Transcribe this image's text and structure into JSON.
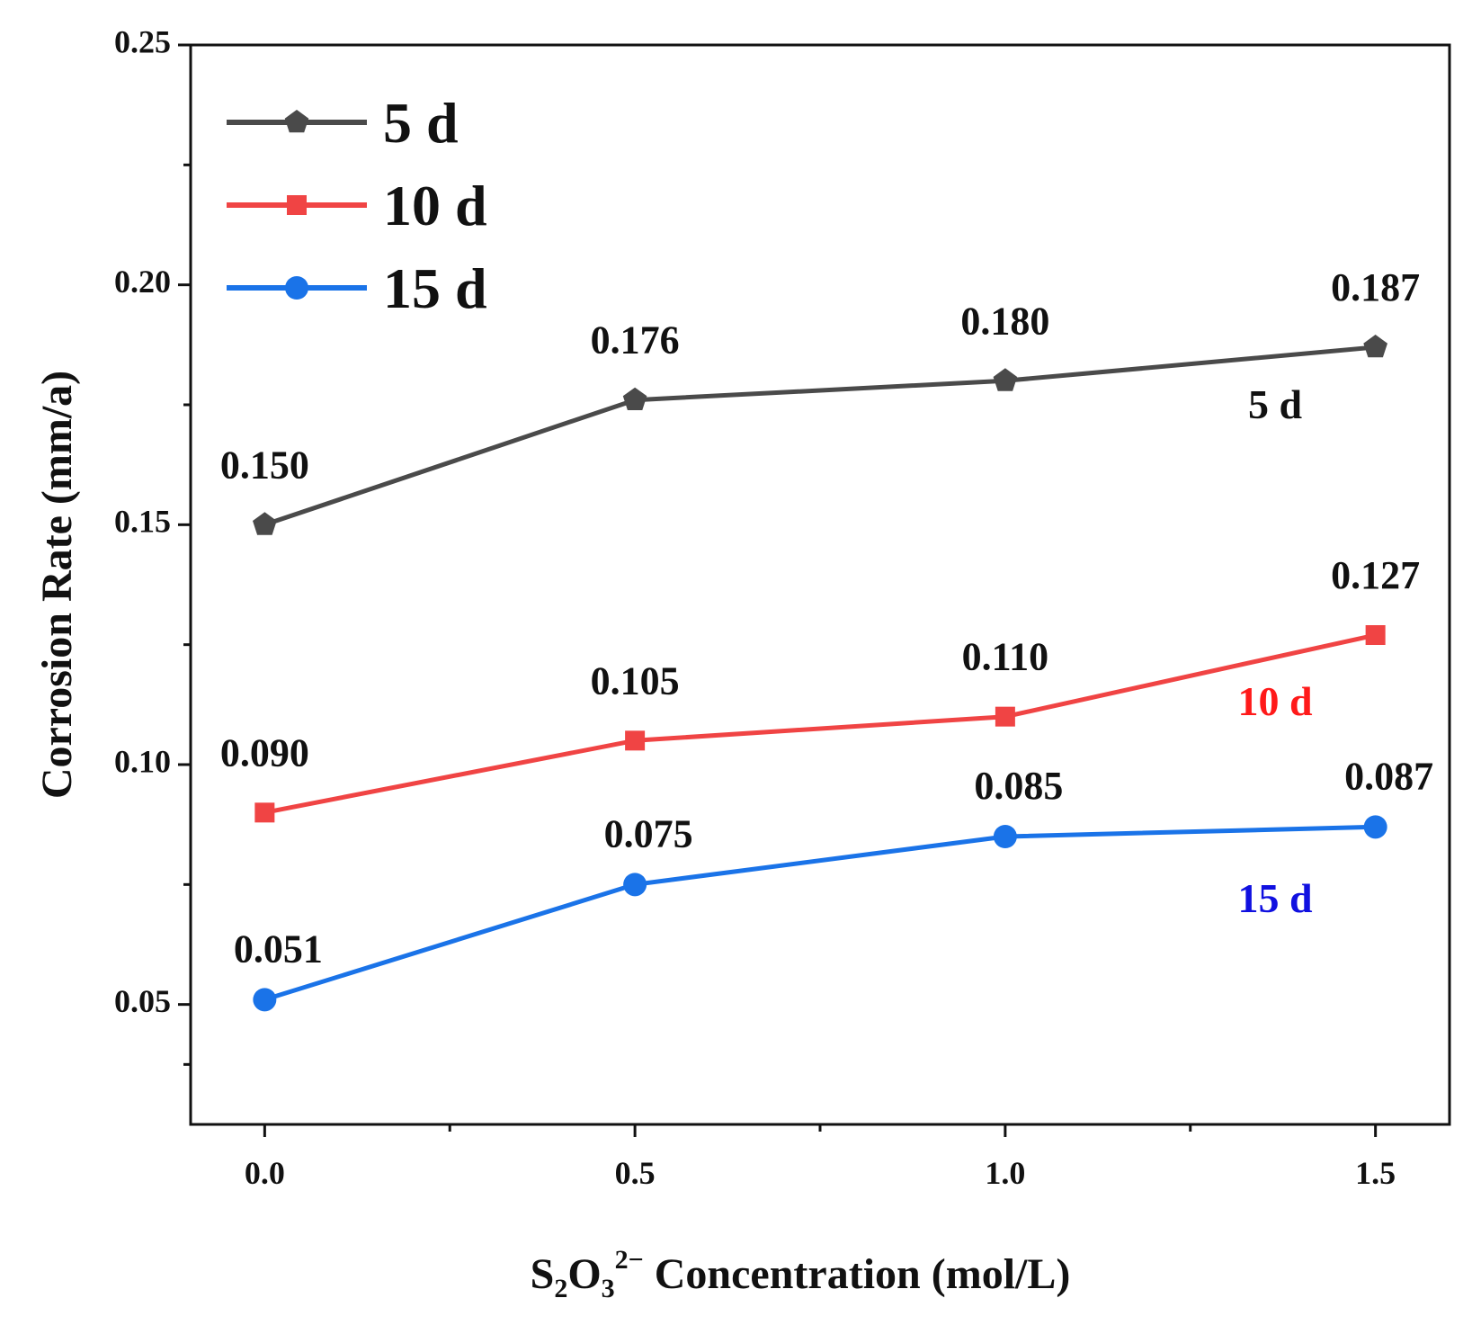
{
  "chart_data": {
    "type": "line",
    "title": "",
    "xlabel": {
      "base": "S",
      "sub1": "2",
      "mid": "O",
      "sub2": "3",
      "sup": "2−",
      "rest": " Concentration (mol/L)"
    },
    "ylabel": "Corrosion Rate (mm/a)",
    "x": [
      0.0,
      0.5,
      1.0,
      1.5
    ],
    "xlim": [
      -0.1,
      1.6
    ],
    "ylim": [
      0.025,
      0.25
    ],
    "xticks": [
      0.0,
      0.5,
      1.0,
      1.5
    ],
    "xtick_labels": [
      "0.0",
      "0.5",
      "1.0",
      "1.5"
    ],
    "yticks": [
      0.05,
      0.1,
      0.15,
      0.2,
      0.25
    ],
    "ytick_labels": [
      "0.05",
      "0.10",
      "0.15",
      "0.20",
      "0.25"
    ],
    "grid": false,
    "legend_position": "top-left",
    "series": [
      {
        "name": "5 d",
        "color": "#4a4a4a",
        "marker": "pentagon",
        "values": [
          0.15,
          0.176,
          0.18,
          0.187
        ],
        "value_labels": [
          "0.150",
          "0.176",
          "0.180",
          "0.187"
        ],
        "tag": "5 d",
        "tag_color": "#111111"
      },
      {
        "name": "10 d",
        "color": "#f04444",
        "marker": "square",
        "values": [
          0.09,
          0.105,
          0.11,
          0.127
        ],
        "value_labels": [
          "0.090",
          "0.105",
          "0.110",
          "0.127"
        ],
        "tag": "10 d",
        "tag_color": "#ff1a1a"
      },
      {
        "name": "15 d",
        "color": "#1a73e8",
        "marker": "circle",
        "values": [
          0.051,
          0.075,
          0.085,
          0.087
        ],
        "value_labels": [
          "0.051",
          "0.075",
          "0.085",
          "0.087"
        ],
        "tag": "15 d",
        "tag_color": "#1010e0"
      }
    ]
  }
}
